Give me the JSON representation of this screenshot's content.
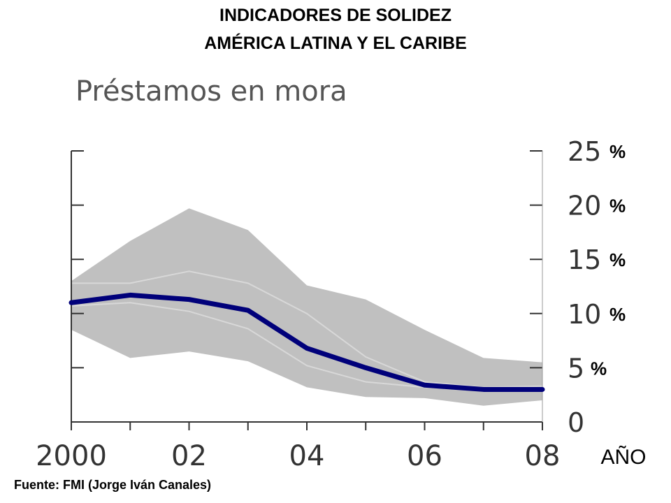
{
  "header": {
    "title_line1": "INDICADORES DE SOLIDEZ",
    "title_line2": "AMÉRICA LATINA Y EL CARIBE"
  },
  "chart_data": {
    "type": "line",
    "title": "Préstamos en mora",
    "xlabel": "AÑO",
    "ylabel": "",
    "x_ticks": [
      "2000",
      "02",
      "04",
      "06",
      "08"
    ],
    "y_ticks": [
      "0",
      "5",
      "10",
      "15",
      "20",
      "25"
    ],
    "y_unit_suffix": "%",
    "percent_marks_at": [
      5,
      10,
      15,
      20,
      25
    ],
    "ylim": [
      0,
      25
    ],
    "xlim": [
      2000,
      2008
    ],
    "grid": false,
    "years": [
      2000,
      2001,
      2002,
      2003,
      2004,
      2005,
      2006,
      2007,
      2008
    ],
    "series": [
      {
        "values": [
          11.0,
          11.7,
          11.3,
          10.3,
          6.8,
          5.0,
          3.4,
          3.0,
          3.0
        ],
        "color": "#00007a"
      }
    ],
    "band": {
      "upper": [
        13.0,
        16.7,
        19.7,
        17.7,
        12.6,
        11.3,
        8.5,
        5.9,
        5.5
      ],
      "lower": [
        8.5,
        5.9,
        6.5,
        5.6,
        3.2,
        2.3,
        2.2,
        1.5,
        2.0
      ],
      "color": "#c0c0c0"
    },
    "faint_lines": [
      {
        "values": [
          12.8,
          12.8,
          13.9,
          12.8,
          10.0,
          6.0,
          3.7,
          3.2,
          3.3
        ],
        "color": "#d8d8d8"
      },
      {
        "values": [
          10.7,
          11.0,
          10.2,
          8.6,
          5.2,
          3.7,
          3.2,
          2.9,
          2.9
        ],
        "color": "#d8d8d8"
      }
    ]
  },
  "footer": {
    "source": "Fuente: FMI (Jorge Iván Canales)"
  }
}
